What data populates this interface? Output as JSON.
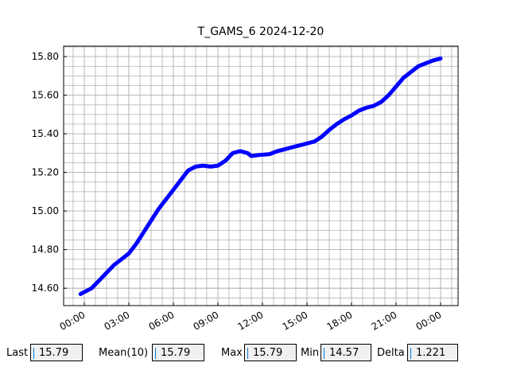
{
  "chart_data": {
    "type": "line",
    "title": "T_GAMS_6 2024-12-20",
    "x": [
      -0.25,
      0.5,
      1,
      1.5,
      2,
      2.5,
      3,
      3.5,
      4,
      4.5,
      5,
      5.5,
      6,
      6.5,
      7,
      7.5,
      8,
      8.5,
      9,
      9.5,
      10,
      10.5,
      11,
      11.25,
      11.75,
      12.5,
      13,
      13.5,
      14,
      14.5,
      15,
      15.5,
      16,
      16.5,
      17,
      17.5,
      18,
      18.5,
      19,
      19.5,
      20,
      20.5,
      21,
      21.5,
      22,
      22.5,
      23,
      23.5,
      24
    ],
    "series": [
      {
        "color": "#0000ff",
        "values": [
          14.57,
          14.6,
          14.64,
          14.68,
          14.72,
          14.75,
          14.78,
          14.83,
          14.89,
          14.95,
          15.01,
          15.06,
          15.11,
          15.16,
          15.21,
          15.23,
          15.235,
          15.23,
          15.235,
          15.26,
          15.3,
          15.31,
          15.3,
          15.285,
          15.29,
          15.295,
          15.31,
          15.32,
          15.33,
          15.34,
          15.35,
          15.36,
          15.385,
          15.42,
          15.45,
          15.475,
          15.495,
          15.52,
          15.535,
          15.545,
          15.565,
          15.6,
          15.645,
          15.69,
          15.72,
          15.75,
          15.765,
          15.78,
          15.79
        ]
      }
    ],
    "xlim": [
      -1.39,
      25.18
    ],
    "ylim": [
      14.51,
      15.854
    ],
    "xticks": [
      {
        "value": 0,
        "label": "00:00"
      },
      {
        "value": 3,
        "label": "03:00"
      },
      {
        "value": 6,
        "label": "06:00"
      },
      {
        "value": 9,
        "label": "09:00"
      },
      {
        "value": 12,
        "label": "12:00"
      },
      {
        "value": 15,
        "label": "15:00"
      },
      {
        "value": 18,
        "label": "18:00"
      },
      {
        "value": 21,
        "label": "21:00"
      },
      {
        "value": 24,
        "label": "00:00"
      }
    ],
    "yticks": [
      {
        "value": 14.6,
        "label": "14.60"
      },
      {
        "value": 14.8,
        "label": "14.80"
      },
      {
        "value": 15.0,
        "label": "15.00"
      },
      {
        "value": 15.2,
        "label": "15.20"
      },
      {
        "value": 15.4,
        "label": "15.40"
      },
      {
        "value": 15.6,
        "label": "15.60"
      },
      {
        "value": 15.8,
        "label": "15.80"
      }
    ],
    "grid": true,
    "minor_grid": true
  },
  "fields": [
    {
      "label": "Last",
      "value": 15.79
    },
    {
      "label": "Mean(10)",
      "value": 15.79
    },
    {
      "label": "Max",
      "value": 15.79
    },
    {
      "label": "Min",
      "value": 14.57
    },
    {
      "label": "Delta",
      "value": 1.221
    }
  ]
}
